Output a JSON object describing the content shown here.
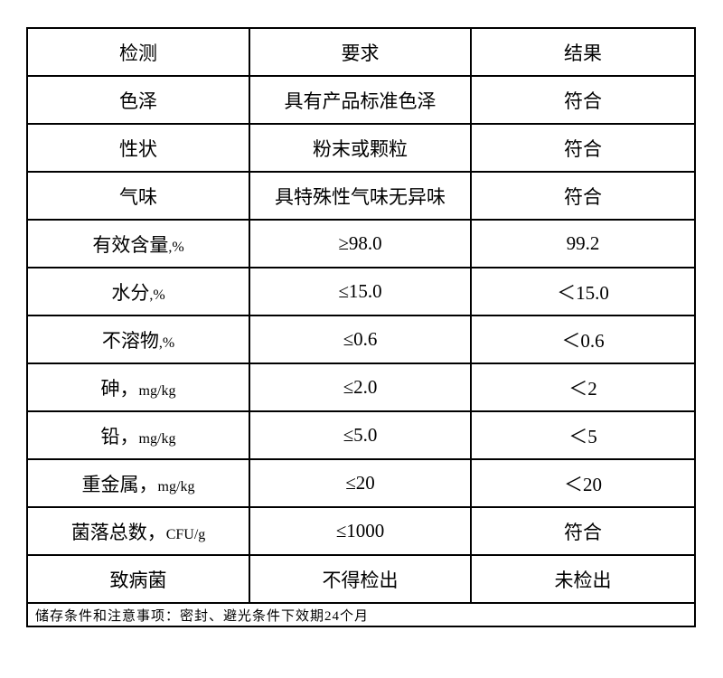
{
  "headers": [
    "检测",
    "要求",
    "结果"
  ],
  "rows": [
    {
      "item": "色泽",
      "unit": "",
      "requirement": "具有产品标准色泽",
      "result": "符合"
    },
    {
      "item": "性状",
      "unit": "",
      "requirement": "粉末或颗粒",
      "result": "符合"
    },
    {
      "item": "气味",
      "unit": "",
      "requirement": "具特殊性气味无异味",
      "result": "符合"
    },
    {
      "item": "有效含量",
      "unit": ",%",
      "requirement": "≥98.0",
      "result": "99.2"
    },
    {
      "item": "水分",
      "unit": ",%",
      "requirement": "≤15.0",
      "result": "＜15.0"
    },
    {
      "item": "不溶物",
      "unit": ",%",
      "requirement": "≤0.6",
      "result": "＜0.6"
    },
    {
      "item": "砷，",
      "unit": "mg/kg",
      "requirement": "≤2.0",
      "result": "＜2"
    },
    {
      "item": "铅，",
      "unit": "mg/kg",
      "requirement": "≤5.0",
      "result": "＜5"
    },
    {
      "item": "重金属，",
      "unit": "mg/kg",
      "requirement": "≤20",
      "result": "＜20"
    },
    {
      "item": "菌落总数，",
      "unit": "CFU/g",
      "requirement": "≤1000",
      "result": "符合"
    },
    {
      "item": "致病菌",
      "unit": "",
      "requirement": "不得检出",
      "result": "未检出"
    }
  ],
  "footer": "储存条件和注意事项：密封、避光条件下效期24个月"
}
